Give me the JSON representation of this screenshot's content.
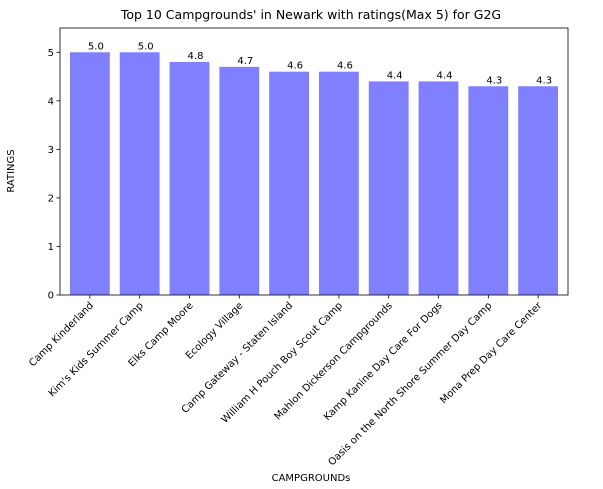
{
  "chart_data": {
    "type": "bar",
    "title": "Top 10 Campgrounds' in Newark with ratings(Max 5) for G2G",
    "xlabel": "CAMPGROUNDs",
    "ylabel": "RATINGS",
    "ylim": [
      0,
      5.5
    ],
    "yticks": [
      "0",
      "1",
      "2",
      "3",
      "4",
      "5"
    ],
    "grid": false,
    "bar_color": "#8080ff",
    "categories": [
      "Camp Kinderland",
      "Kim's Kids Summer Camp",
      "Elks Camp Moore",
      "Ecology Village",
      "Camp Gateway - Staten Island",
      "William H Pouch Boy Scout Camp",
      "Mahlon Dickerson Campgrounds",
      "Kamp Kanine Day Care For Dogs",
      "Oasis on the North Shore Summer Day Camp",
      "Mona Prep Day Care Center"
    ],
    "values": [
      5.0,
      5.0,
      4.8,
      4.7,
      4.6,
      4.6,
      4.4,
      4.4,
      4.3,
      4.3
    ],
    "data_labels": [
      "5.0",
      "5.0",
      "4.8",
      "4.7",
      "4.6",
      "4.6",
      "4.4",
      "4.4",
      "4.3",
      "4.3"
    ]
  }
}
